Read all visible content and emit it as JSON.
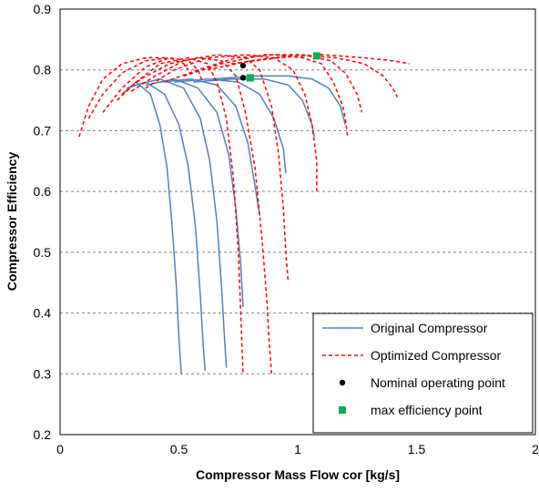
{
  "chart_data": {
    "type": "line",
    "title": "",
    "xlabel": "Compressor Mass Flow cor [kg/s]",
    "ylabel": "Compressor Efficiency",
    "xlim": [
      0,
      2
    ],
    "ylim": [
      0.2,
      0.9
    ],
    "x_ticks": [
      0,
      0.5,
      1,
      1.5,
      2
    ],
    "x_tick_labels": [
      "0",
      "0.5",
      "1",
      "1.5",
      "2"
    ],
    "y_ticks": [
      0.2,
      0.3,
      0.4,
      0.5,
      0.6,
      0.7,
      0.8,
      0.9
    ],
    "y_tick_labels": [
      "0.2",
      "0.3",
      "0.4",
      "0.5",
      "0.6",
      "0.7",
      "0.8",
      "0.9"
    ],
    "grid": "horizontal dashed",
    "legend_position": "bottom-right",
    "colors": {
      "original": "#4f81bd",
      "optimized": "#ff0000",
      "nominal": "#000000",
      "max_eff": "#00b050",
      "grid": "#808080"
    },
    "legend": [
      {
        "label": "Original Compressor",
        "kind": "line-solid",
        "color": "#4f81bd"
      },
      {
        "label": "Optimized Compressor",
        "kind": "line-dashed",
        "color": "#ff0000"
      },
      {
        "label": "Nominal operating point",
        "kind": "marker-circle",
        "color": "#000000"
      },
      {
        "label": "max efficiency point",
        "kind": "marker-square",
        "color": "#00b050"
      }
    ],
    "series": [
      {
        "group": "original",
        "points": [
          [
            0.26,
            0.76
          ],
          [
            0.32,
            0.78
          ],
          [
            0.38,
            0.76
          ],
          [
            0.42,
            0.71
          ],
          [
            0.45,
            0.64
          ],
          [
            0.47,
            0.55
          ],
          [
            0.49,
            0.44
          ],
          [
            0.5,
            0.36
          ],
          [
            0.51,
            0.3
          ]
        ]
      },
      {
        "group": "original",
        "points": [
          [
            0.28,
            0.77
          ],
          [
            0.36,
            0.78
          ],
          [
            0.44,
            0.76
          ],
          [
            0.5,
            0.71
          ],
          [
            0.54,
            0.64
          ],
          [
            0.57,
            0.54
          ],
          [
            0.59,
            0.43
          ],
          [
            0.6,
            0.36
          ],
          [
            0.61,
            0.305
          ]
        ]
      },
      {
        "group": "original",
        "points": [
          [
            0.32,
            0.775
          ],
          [
            0.42,
            0.785
          ],
          [
            0.52,
            0.77
          ],
          [
            0.59,
            0.72
          ],
          [
            0.63,
            0.65
          ],
          [
            0.66,
            0.55
          ],
          [
            0.68,
            0.44
          ],
          [
            0.69,
            0.37
          ],
          [
            0.7,
            0.31
          ]
        ]
      },
      {
        "group": "original",
        "points": [
          [
            0.36,
            0.775
          ],
          [
            0.48,
            0.785
          ],
          [
            0.58,
            0.77
          ],
          [
            0.66,
            0.73
          ],
          [
            0.71,
            0.66
          ],
          [
            0.74,
            0.57
          ],
          [
            0.76,
            0.48
          ],
          [
            0.77,
            0.41
          ]
        ]
      },
      {
        "group": "original",
        "points": [
          [
            0.42,
            0.78
          ],
          [
            0.55,
            0.785
          ],
          [
            0.66,
            0.775
          ],
          [
            0.74,
            0.74
          ],
          [
            0.79,
            0.68
          ],
          [
            0.82,
            0.61
          ],
          [
            0.84,
            0.56
          ]
        ]
      },
      {
        "group": "original",
        "points": [
          [
            0.48,
            0.78
          ],
          [
            0.62,
            0.785
          ],
          [
            0.75,
            0.78
          ],
          [
            0.84,
            0.76
          ],
          [
            0.9,
            0.72
          ],
          [
            0.94,
            0.67
          ],
          [
            0.95,
            0.63
          ]
        ]
      },
      {
        "group": "original",
        "points": [
          [
            0.56,
            0.78
          ],
          [
            0.72,
            0.785
          ],
          [
            0.86,
            0.785
          ],
          [
            0.96,
            0.775
          ],
          [
            1.02,
            0.75
          ],
          [
            1.06,
            0.71
          ],
          [
            1.07,
            0.69
          ]
        ]
      },
      {
        "group": "original",
        "points": [
          [
            0.64,
            0.785
          ],
          [
            0.82,
            0.79
          ],
          [
            0.96,
            0.79
          ],
          [
            1.06,
            0.785
          ],
          [
            1.13,
            0.77
          ],
          [
            1.18,
            0.74
          ],
          [
            1.2,
            0.71
          ]
        ]
      },
      {
        "group": "optimized",
        "points": [
          [
            0.08,
            0.69
          ],
          [
            0.12,
            0.74
          ],
          [
            0.18,
            0.785
          ],
          [
            0.26,
            0.81
          ],
          [
            0.36,
            0.82
          ],
          [
            0.44,
            0.82
          ]
        ]
      },
      {
        "group": "optimized",
        "points": [
          [
            0.12,
            0.72
          ],
          [
            0.18,
            0.76
          ],
          [
            0.26,
            0.795
          ],
          [
            0.36,
            0.815
          ],
          [
            0.46,
            0.82
          ],
          [
            0.52,
            0.81
          ],
          [
            0.54,
            0.8
          ]
        ]
      },
      {
        "group": "optimized",
        "points": [
          [
            0.18,
            0.73
          ],
          [
            0.26,
            0.77
          ],
          [
            0.36,
            0.805
          ],
          [
            0.46,
            0.82
          ],
          [
            0.54,
            0.815
          ],
          [
            0.58,
            0.8
          ],
          [
            0.6,
            0.78
          ]
        ]
      },
      {
        "group": "optimized",
        "points": [
          [
            0.24,
            0.75
          ],
          [
            0.32,
            0.78
          ],
          [
            0.42,
            0.81
          ],
          [
            0.54,
            0.82
          ],
          [
            0.62,
            0.81
          ],
          [
            0.66,
            0.78
          ],
          [
            0.7,
            0.72
          ],
          [
            0.73,
            0.62
          ],
          [
            0.75,
            0.5
          ],
          [
            0.76,
            0.4
          ],
          [
            0.77,
            0.3
          ]
        ]
      },
      {
        "group": "optimized",
        "points": [
          [
            0.26,
            0.76
          ],
          [
            0.34,
            0.785
          ],
          [
            0.46,
            0.81
          ],
          [
            0.58,
            0.82
          ],
          [
            0.68,
            0.815
          ],
          [
            0.74,
            0.79
          ],
          [
            0.78,
            0.73
          ],
          [
            0.82,
            0.64
          ],
          [
            0.85,
            0.52
          ],
          [
            0.87,
            0.42
          ],
          [
            0.88,
            0.35
          ],
          [
            0.89,
            0.3
          ]
        ]
      },
      {
        "group": "optimized",
        "points": [
          [
            0.3,
            0.765
          ],
          [
            0.4,
            0.79
          ],
          [
            0.52,
            0.815
          ],
          [
            0.66,
            0.825
          ],
          [
            0.78,
            0.82
          ],
          [
            0.84,
            0.8
          ],
          [
            0.89,
            0.74
          ],
          [
            0.92,
            0.66
          ],
          [
            0.94,
            0.57
          ],
          [
            0.95,
            0.5
          ],
          [
            0.96,
            0.45
          ]
        ]
      },
      {
        "group": "optimized",
        "points": [
          [
            0.36,
            0.77
          ],
          [
            0.48,
            0.8
          ],
          [
            0.62,
            0.82
          ],
          [
            0.78,
            0.825
          ],
          [
            0.9,
            0.82
          ],
          [
            0.98,
            0.8
          ],
          [
            1.03,
            0.76
          ],
          [
            1.06,
            0.71
          ],
          [
            1.07,
            0.68
          ],
          [
            1.08,
            0.65
          ],
          [
            1.08,
            0.6
          ]
        ]
      },
      {
        "group": "optimized",
        "points": [
          [
            0.44,
            0.78
          ],
          [
            0.58,
            0.8
          ],
          [
            0.74,
            0.82
          ],
          [
            0.9,
            0.825
          ],
          [
            1.02,
            0.82
          ],
          [
            1.1,
            0.81
          ],
          [
            1.15,
            0.78
          ],
          [
            1.19,
            0.74
          ],
          [
            1.2,
            0.72
          ],
          [
            1.21,
            0.69
          ]
        ]
      },
      {
        "group": "optimized",
        "points": [
          [
            0.52,
            0.79
          ],
          [
            0.68,
            0.81
          ],
          [
            0.86,
            0.825
          ],
          [
            1.02,
            0.825
          ],
          [
            1.14,
            0.815
          ],
          [
            1.2,
            0.795
          ],
          [
            1.25,
            0.76
          ],
          [
            1.27,
            0.73
          ]
        ]
      },
      {
        "group": "optimized",
        "points": [
          [
            0.62,
            0.8
          ],
          [
            0.8,
            0.815
          ],
          [
            1.0,
            0.825
          ],
          [
            1.16,
            0.82
          ],
          [
            1.28,
            0.81
          ],
          [
            1.36,
            0.79
          ],
          [
            1.4,
            0.77
          ],
          [
            1.42,
            0.755
          ]
        ]
      },
      {
        "group": "optimized",
        "points": [
          [
            0.72,
            0.81
          ],
          [
            0.92,
            0.82
          ],
          [
            1.1,
            0.825
          ],
          [
            1.28,
            0.82
          ],
          [
            1.4,
            0.815
          ],
          [
            1.47,
            0.81
          ]
        ]
      }
    ],
    "nominal_points": [
      [
        0.77,
        0.807
      ],
      [
        0.77,
        0.787
      ]
    ],
    "max_efficiency_points": [
      [
        1.08,
        0.823
      ],
      [
        0.8,
        0.787
      ]
    ]
  }
}
